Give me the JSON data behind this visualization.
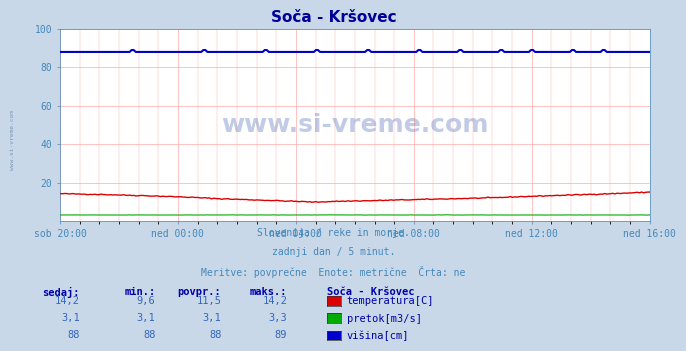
{
  "title": "Soča - Kršovec",
  "title_color": "#000099",
  "bg_color": "#c8d8e8",
  "plot_bg_color": "#ffffff",
  "grid_color": "#ffaaaa",
  "watermark_text": "www.si-vreme.com",
  "watermark_color": "#3355aa",
  "watermark_alpha": 0.3,
  "subtitle_lines": [
    "Slovenija / reke in morje.",
    "zadnji dan / 5 minut.",
    "Meritve: povprečne  Enote: metrične  Črta: ne"
  ],
  "subtitle_color": "#4488bb",
  "xlabel_color": "#4488bb",
  "ylabel_color": "#4488bb",
  "tick_color": "#4488bb",
  "x_tick_labels": [
    "sob 20:00",
    "ned 00:00",
    "ned 04:00",
    "ned 08:00",
    "ned 12:00",
    "ned 16:00"
  ],
  "x_tick_positions": [
    0,
    48,
    96,
    144,
    192,
    240
  ],
  "n_points": 289,
  "ylim": [
    0,
    100
  ],
  "y_ticks": [
    20,
    40,
    60,
    80,
    100
  ],
  "temp_color": "#dd0000",
  "flow_color": "#00aa00",
  "height_color": "#0000cc",
  "table_header_color": "#0000aa",
  "table_value_color": "#3366bb",
  "legend_box_colors": [
    "#dd0000",
    "#00aa00",
    "#0000cc"
  ],
  "legend_labels": [
    "temperatura[C]",
    "pretok[m3/s]",
    "višina[cm]"
  ],
  "table_rows": [
    {
      "sedaj": "14,2",
      "min": "9,6",
      "povpr": "11,5",
      "maks": "14,2"
    },
    {
      "sedaj": "3,1",
      "min": "3,1",
      "povpr": "3,1",
      "maks": "3,3"
    },
    {
      "sedaj": "88",
      "min": "88",
      "povpr": "88",
      "maks": "89"
    }
  ],
  "col_headers": [
    "sedaj:",
    "min.:",
    "povpr.:",
    "maks.:",
    "Soča - Kršovec"
  ],
  "side_watermark": "www.si-vreme.com"
}
